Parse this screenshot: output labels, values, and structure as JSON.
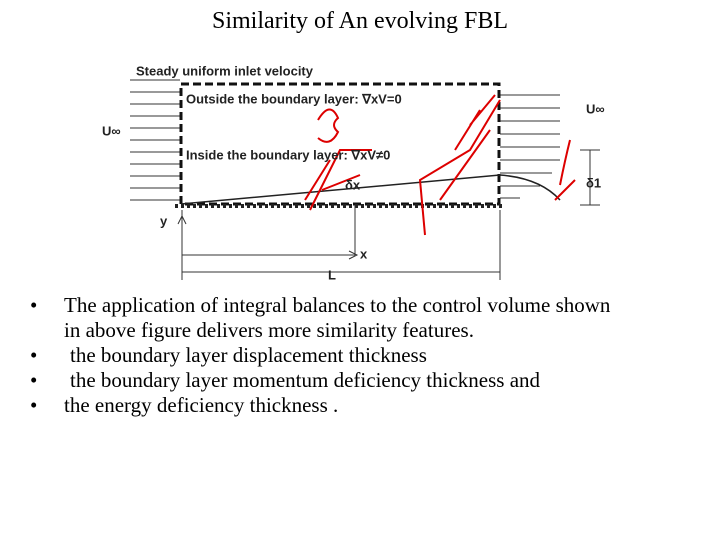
{
  "header": {
    "title": "Similarity of An evolving FBL"
  },
  "figure": {
    "inlet_label": "Steady uniform inlet velocity",
    "outside_label": "Outside the boundary layer: ∇xV=0",
    "inside_label": "Inside the boundary layer: ∇xV≠0",
    "u_left": "U∞",
    "u_right": "U∞",
    "delta_x": "δx",
    "delta_1": "δ1",
    "y_axis": "y",
    "x_axis": "x",
    "length": "L"
  },
  "bullets": [
    "The application of integral balances to the control volume shown in above figure  delivers  more similarity features.",
    "the boundary layer displacement thickness",
    "the boundary layer momentum deficiency thickness and",
    "the energy deficiency thickness ."
  ]
}
